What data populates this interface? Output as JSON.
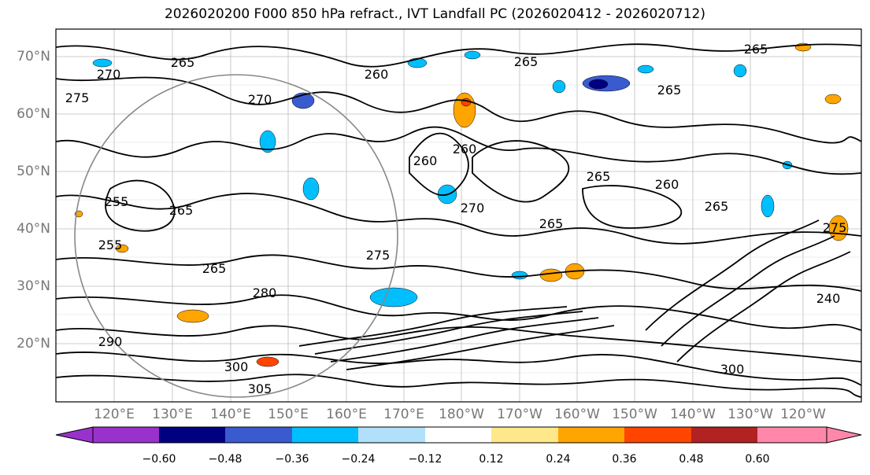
{
  "title": "2026020200 F000 850 hPa refract., IVT Landfall PC (2026020412 - 2026020712)",
  "map": {
    "lat_labels": [
      "70°N",
      "60°N",
      "50°N",
      "40°N",
      "30°N",
      "20°N"
    ],
    "lon_labels": [
      "120°E",
      "130°E",
      "140°E",
      "150°E",
      "160°E",
      "170°E",
      "180°W",
      "170°W",
      "160°W",
      "150°W",
      "140°W",
      "130°W",
      "120°W"
    ],
    "contour_labels": [
      "270",
      "265",
      "275",
      "270",
      "260",
      "265",
      "265",
      "260",
      "260",
      "265",
      "260",
      "265",
      "270",
      "265",
      "275",
      "265",
      "255",
      "265",
      "255",
      "265",
      "280",
      "300",
      "305",
      "275",
      "240",
      "290",
      "300"
    ],
    "extent": {
      "lon_min": 112,
      "lon_max": 248,
      "lat_min": 10,
      "lat_max": 75
    }
  },
  "colorbar": {
    "ticks": [
      "−0.60",
      "−0.48",
      "−0.36",
      "−0.24",
      "−0.12",
      "0.12",
      "0.24",
      "0.36",
      "0.48",
      "0.60"
    ],
    "colors": [
      "#9932cc",
      "#000080",
      "#3a5bd0",
      "#00bfff",
      "#b0e0fa",
      "#ffffff",
      "#ffe88a",
      "#ffa500",
      "#ff4500",
      "#b22222",
      "#ff88aa"
    ]
  }
}
